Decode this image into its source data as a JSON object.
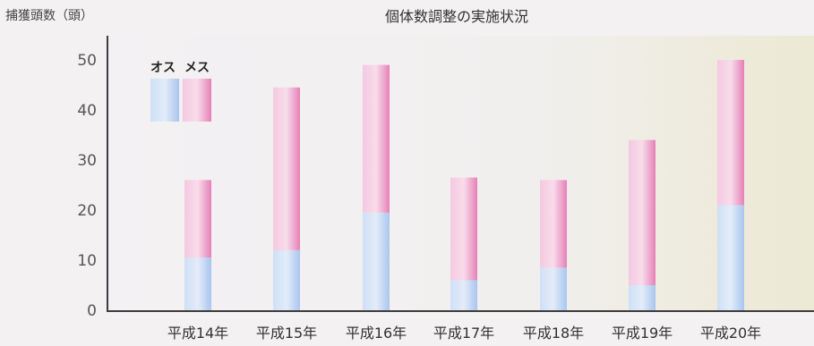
{
  "chart_data": {
    "type": "bar",
    "stacked": true,
    "title": "個体数調整の実施状況",
    "ylabel": "捕獲頭数（頭）",
    "xlabel": "",
    "categories": [
      "平成14年",
      "平成15年",
      "平成16年",
      "平成17年",
      "平成18年",
      "平成19年",
      "平成20年"
    ],
    "series": [
      {
        "name": "オス",
        "values": [
          10.5,
          12,
          19.5,
          6,
          8.5,
          5,
          21
        ]
      },
      {
        "name": "メス",
        "values": [
          15.5,
          32.5,
          29.5,
          20.5,
          17.5,
          29,
          29
        ]
      }
    ],
    "ylim": [
      0,
      50
    ],
    "yticks": [
      "0",
      "10",
      "20",
      "30",
      "40",
      "50"
    ],
    "grid": false,
    "legend_position": "top-left",
    "colors": {
      "male_light": "#cfe0f6",
      "male_dark": "#a9c5ef",
      "female_light": "#f4c9e0",
      "female_dark": "#e680b8",
      "axis": "#3c3c3c",
      "text": "#444444",
      "bg_left": "#f3f1f3",
      "bg_right": "#ece9d4"
    }
  }
}
